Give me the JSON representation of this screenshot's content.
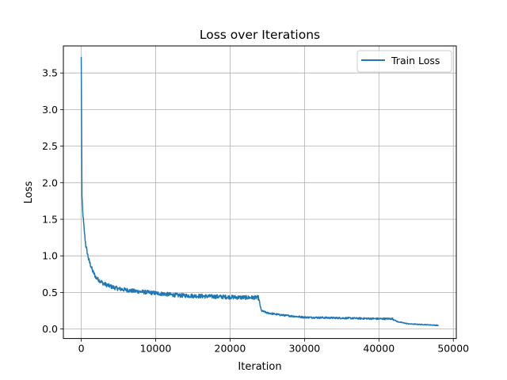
{
  "chart_data": {
    "type": "line",
    "title": "Loss over Iterations",
    "xlabel": "Iteration",
    "ylabel": "Loss",
    "xlim": [
      -2400,
      50400
    ],
    "ylim": [
      -0.13,
      3.87
    ],
    "xticks": [
      0,
      10000,
      20000,
      30000,
      40000,
      50000
    ],
    "xtick_labels": [
      "0",
      "10000",
      "20000",
      "30000",
      "40000",
      "50000"
    ],
    "yticks": [
      0.0,
      0.5,
      1.0,
      1.5,
      2.0,
      2.5,
      3.0,
      3.5
    ],
    "ytick_labels": [
      "0.0",
      "0.5",
      "1.0",
      "1.5",
      "2.0",
      "2.5",
      "3.0",
      "3.5"
    ],
    "grid": true,
    "legend": "top-right",
    "color": "#1f77b4",
    "series": [
      {
        "name": "Train Loss",
        "x": [
          0,
          100,
          200,
          400,
          600,
          1000,
          1500,
          2000,
          3000,
          4000,
          5000,
          7000,
          10000,
          13000,
          16000,
          19000,
          22000,
          23800,
          24200,
          25000,
          27000,
          30000,
          35000,
          40000,
          41800,
          42500,
          44000,
          46000,
          48000
        ],
        "y": [
          3.72,
          1.8,
          1.6,
          1.35,
          1.15,
          0.95,
          0.8,
          0.7,
          0.62,
          0.58,
          0.55,
          0.52,
          0.49,
          0.46,
          0.45,
          0.44,
          0.43,
          0.43,
          0.25,
          0.22,
          0.19,
          0.16,
          0.15,
          0.14,
          0.14,
          0.1,
          0.07,
          0.06,
          0.05
        ]
      }
    ]
  }
}
